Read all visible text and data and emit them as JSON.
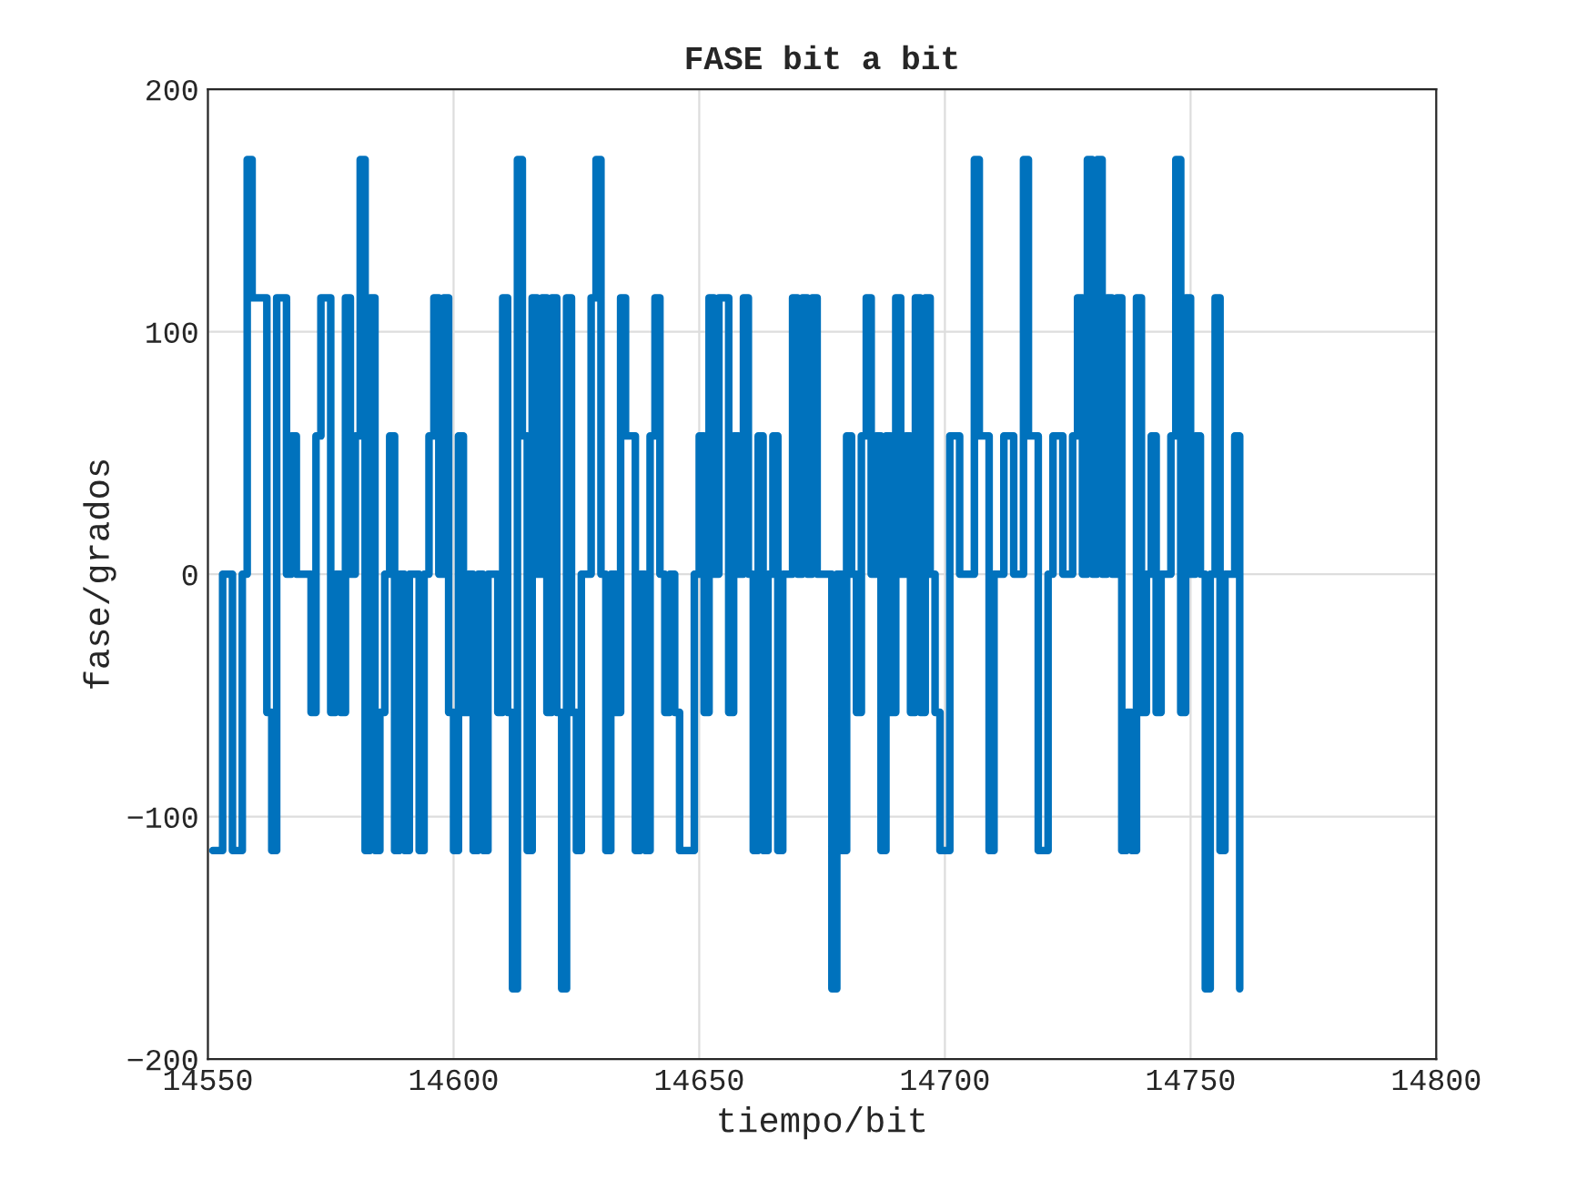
{
  "chart_data": {
    "type": "step",
    "title": "FASE bit a bit",
    "xlabel": "tiempo/bit",
    "ylabel": "fase/grados",
    "xlim": [
      14550,
      14800
    ],
    "xticks": [
      14550,
      14600,
      14650,
      14700,
      14750,
      14800
    ],
    "ylim": [
      -200,
      200
    ],
    "yticks": [
      {
        "value": -200,
        "label": "−200"
      },
      {
        "value": -100,
        "label": "−100"
      },
      0,
      100,
      200
    ],
    "grid": true,
    "line_style": "solid",
    "marker": "none",
    "series": [
      {
        "color": "#0072bd",
        "x": [
          14551,
          14553,
          14555,
          14557,
          14558,
          14559,
          14562,
          14563,
          14564,
          14566,
          14567,
          14568,
          14571,
          14572,
          14573,
          14575,
          14576,
          14577,
          14578,
          14579,
          14580,
          14581,
          14582,
          14583,
          14584,
          14585,
          14586,
          14587,
          14588,
          14589,
          14590,
          14591,
          14593,
          14594,
          14595,
          14596,
          14597,
          14598,
          14599,
          14600,
          14601,
          14602,
          14603,
          14604,
          14605,
          14606,
          14607,
          14609,
          14610,
          14611,
          14612,
          14613,
          14614,
          14615,
          14616,
          14617,
          14618,
          14619,
          14620,
          14621,
          14622,
          14623,
          14624,
          14625,
          14626,
          14628,
          14629,
          14630,
          14631,
          14632,
          14633,
          14634,
          14635,
          14637,
          14638,
          14639,
          14640,
          14641,
          14642,
          14643,
          14644,
          14645,
          14646,
          14649,
          14650,
          14651,
          14652,
          14653,
          14654,
          14656,
          14657,
          14658,
          14659,
          14660,
          14661,
          14662,
          14663,
          14664,
          14665,
          14666,
          14667,
          14669,
          14670,
          14671,
          14672,
          14673,
          14674,
          14677,
          14678,
          14679,
          14680,
          14681,
          14682,
          14683,
          14684,
          14685,
          14686,
          14687,
          14688,
          14689,
          14690,
          14691,
          14692,
          14693,
          14694,
          14695,
          14696,
          14697,
          14698,
          14699,
          14701,
          14703,
          14706,
          14707,
          14709,
          14710,
          14712,
          14714,
          14716,
          14717,
          14719,
          14721,
          14722,
          14724,
          14726,
          14727,
          14728,
          14729,
          14730,
          14731,
          14732,
          14733,
          14734,
          14735,
          14736,
          14737,
          14738,
          14739,
          14740,
          14741,
          14742,
          14743,
          14744,
          14746,
          14747,
          14748,
          14749,
          14750,
          14751,
          14752,
          14753,
          14754,
          14755,
          14756,
          14757,
          14759,
          14760
        ],
        "values": [
          -114,
          0,
          -114,
          0,
          171,
          114,
          -57,
          -114,
          114,
          0,
          57,
          0,
          -57,
          57,
          114,
          -57,
          0,
          -57,
          114,
          0,
          57,
          171,
          -114,
          114,
          -114,
          -57,
          0,
          57,
          -114,
          0,
          -114,
          0,
          -114,
          0,
          57,
          114,
          0,
          114,
          -57,
          -114,
          57,
          -57,
          0,
          -114,
          0,
          -114,
          0,
          -57,
          114,
          -57,
          -171,
          171,
          57,
          -114,
          114,
          0,
          114,
          -57,
          114,
          -57,
          -171,
          114,
          -57,
          -114,
          0,
          114,
          171,
          0,
          -114,
          0,
          -57,
          114,
          57,
          -114,
          0,
          -114,
          57,
          114,
          0,
          -57,
          0,
          -57,
          -114,
          0,
          57,
          -57,
          114,
          0,
          114,
          -57,
          57,
          0,
          114,
          0,
          -114,
          57,
          -114,
          0,
          57,
          -114,
          0,
          114,
          0,
          114,
          0,
          114,
          0,
          -171,
          0,
          -114,
          57,
          0,
          -57,
          57,
          114,
          0,
          57,
          -114,
          57,
          -57,
          114,
          0,
          57,
          -57,
          114,
          -57,
          114,
          0,
          -57,
          -114,
          57,
          0,
          171,
          57,
          -114,
          0,
          57,
          0,
          171,
          57,
          -114,
          0,
          57,
          0,
          57,
          114,
          0,
          171,
          0,
          171,
          0,
          114,
          0,
          114,
          -114,
          -57,
          -114,
          114,
          -57,
          0,
          57,
          -57,
          0,
          57,
          171,
          -57,
          114,
          0,
          57,
          0,
          -171,
          0,
          114,
          -114,
          0,
          57,
          -171
        ]
      }
    ]
  }
}
